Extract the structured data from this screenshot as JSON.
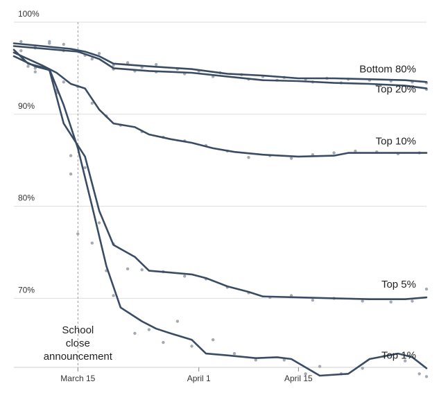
{
  "chart_data": {
    "type": "line",
    "x_axis": {
      "type": "date",
      "domain": [
        "2020-03-06",
        "2020-05-03"
      ],
      "ticks": [
        {
          "x": "2020-03-15",
          "label": "March 15"
        },
        {
          "x": "2020-04-01",
          "label": "April 1"
        },
        {
          "x": "2020-04-15",
          "label": "April 15"
        }
      ]
    },
    "y_axis": {
      "ylim": [
        62.5,
        100
      ],
      "ticks": [
        {
          "y": 100,
          "label": "100%"
        },
        {
          "y": 90,
          "label": "90%"
        },
        {
          "y": 80,
          "label": "80%"
        },
        {
          "y": 70,
          "label": "70%"
        }
      ]
    },
    "grid": true,
    "annotation": {
      "x": "2020-03-15",
      "lines": [
        "School",
        "close",
        "announcement"
      ]
    },
    "series": [
      {
        "name": "Bottom 80%",
        "line": [
          [
            "2020-03-06",
            97.7
          ],
          [
            "2020-03-14",
            97.1
          ],
          [
            "2020-03-16",
            96.8
          ],
          [
            "2020-03-18",
            96.3
          ],
          [
            "2020-03-20",
            95.5
          ],
          [
            "2020-03-25",
            95.2
          ],
          [
            "2020-03-31",
            94.9
          ],
          [
            "2020-04-05",
            94.4
          ],
          [
            "2020-04-10",
            94.2
          ],
          [
            "2020-04-15",
            93.9
          ],
          [
            "2020-04-20",
            93.9
          ],
          [
            "2020-04-25",
            93.8
          ],
          [
            "2020-04-30",
            93.7
          ],
          [
            "2020-05-03",
            93.5
          ]
        ],
        "points": [
          [
            "2020-03-07",
            97.9
          ],
          [
            "2020-03-09",
            97.4
          ],
          [
            "2020-03-11",
            97.9
          ],
          [
            "2020-03-13",
            97.6
          ],
          [
            "2020-03-16",
            96.4
          ],
          [
            "2020-03-18",
            96.6
          ],
          [
            "2020-03-20",
            95.3
          ],
          [
            "2020-03-22",
            95.6
          ],
          [
            "2020-03-24",
            95.1
          ],
          [
            "2020-03-26",
            95.4
          ],
          [
            "2020-03-29",
            94.9
          ],
          [
            "2020-04-01",
            94.7
          ],
          [
            "2020-04-04",
            94.5
          ],
          [
            "2020-04-07",
            94.3
          ],
          [
            "2020-04-10",
            94.1
          ],
          [
            "2020-04-13",
            94.0
          ],
          [
            "2020-04-16",
            93.8
          ],
          [
            "2020-04-19",
            93.9
          ],
          [
            "2020-04-22",
            93.8
          ],
          [
            "2020-04-25",
            93.7
          ],
          [
            "2020-04-28",
            93.6
          ],
          [
            "2020-05-01",
            93.5
          ],
          [
            "2020-05-03",
            93.4
          ]
        ]
      },
      {
        "name": "Top 20%",
        "line": [
          [
            "2020-03-06",
            97.4
          ],
          [
            "2020-03-12",
            97.0
          ],
          [
            "2020-03-15",
            96.8
          ],
          [
            "2020-03-18",
            96.0
          ],
          [
            "2020-03-20",
            95.0
          ],
          [
            "2020-03-25",
            94.7
          ],
          [
            "2020-03-31",
            94.5
          ],
          [
            "2020-04-05",
            94.1
          ],
          [
            "2020-04-10",
            93.7
          ],
          [
            "2020-04-15",
            93.6
          ],
          [
            "2020-04-20",
            93.4
          ],
          [
            "2020-04-25",
            93.3
          ],
          [
            "2020-04-30",
            93.1
          ],
          [
            "2020-05-03",
            92.8
          ]
        ],
        "points": [
          [
            "2020-03-07",
            96.9
          ],
          [
            "2020-03-09",
            97.2
          ],
          [
            "2020-03-11",
            97.7
          ],
          [
            "2020-03-13",
            96.9
          ],
          [
            "2020-03-17",
            96.0
          ],
          [
            "2020-03-20",
            94.9
          ],
          [
            "2020-03-23",
            94.7
          ],
          [
            "2020-03-26",
            94.6
          ],
          [
            "2020-03-30",
            94.4
          ],
          [
            "2020-04-03",
            94.1
          ],
          [
            "2020-04-08",
            93.8
          ],
          [
            "2020-04-12",
            93.7
          ],
          [
            "2020-04-17",
            93.5
          ],
          [
            "2020-04-21",
            93.4
          ],
          [
            "2020-04-26",
            93.2
          ],
          [
            "2020-05-01",
            93.0
          ],
          [
            "2020-05-03",
            92.7
          ]
        ]
      },
      {
        "name": "Top 10%",
        "line": [
          [
            "2020-03-06",
            96.7
          ],
          [
            "2020-03-10",
            95.3
          ],
          [
            "2020-03-12",
            94.5
          ],
          [
            "2020-03-14",
            93.3
          ],
          [
            "2020-03-16",
            92.8
          ],
          [
            "2020-03-18",
            90.5
          ],
          [
            "2020-03-20",
            89.0
          ],
          [
            "2020-03-23",
            88.6
          ],
          [
            "2020-03-25",
            87.8
          ],
          [
            "2020-03-28",
            87.3
          ],
          [
            "2020-03-31",
            86.9
          ],
          [
            "2020-04-03",
            86.3
          ],
          [
            "2020-04-06",
            85.9
          ],
          [
            "2020-04-10",
            85.6
          ],
          [
            "2020-04-15",
            85.4
          ],
          [
            "2020-04-20",
            85.5
          ],
          [
            "2020-04-22",
            85.8
          ],
          [
            "2020-04-28",
            85.8
          ],
          [
            "2020-05-03",
            85.8
          ]
        ],
        "points": [
          [
            "2020-03-08",
            95.2
          ],
          [
            "2020-03-11",
            94.8
          ],
          [
            "2020-03-13",
            93.5
          ],
          [
            "2020-03-15",
            93.0
          ],
          [
            "2020-03-17",
            91.2
          ],
          [
            "2020-03-19",
            89.8
          ],
          [
            "2020-03-21",
            88.8
          ],
          [
            "2020-03-24",
            88.1
          ],
          [
            "2020-03-27",
            87.5
          ],
          [
            "2020-03-30",
            87.1
          ],
          [
            "2020-04-02",
            86.6
          ],
          [
            "2020-04-05",
            86.0
          ],
          [
            "2020-04-08",
            85.3
          ],
          [
            "2020-04-11",
            85.5
          ],
          [
            "2020-04-14",
            85.2
          ],
          [
            "2020-04-17",
            85.6
          ],
          [
            "2020-04-20",
            85.8
          ],
          [
            "2020-04-23",
            86.0
          ],
          [
            "2020-04-26",
            85.9
          ],
          [
            "2020-04-29",
            85.7
          ],
          [
            "2020-05-02",
            85.8
          ]
        ]
      },
      {
        "name": "Top 5%",
        "line": [
          [
            "2020-03-06",
            96.3
          ],
          [
            "2020-03-09",
            95.2
          ],
          [
            "2020-03-11",
            94.8
          ],
          [
            "2020-03-13",
            89.0
          ],
          [
            "2020-03-16",
            85.4
          ],
          [
            "2020-03-18",
            79.5
          ],
          [
            "2020-03-20",
            75.8
          ],
          [
            "2020-03-23",
            74.5
          ],
          [
            "2020-03-25",
            73.0
          ],
          [
            "2020-03-28",
            72.8
          ],
          [
            "2020-03-31",
            72.6
          ],
          [
            "2020-04-02",
            72.2
          ],
          [
            "2020-04-05",
            71.3
          ],
          [
            "2020-04-08",
            70.7
          ],
          [
            "2020-04-10",
            70.2
          ],
          [
            "2020-04-15",
            70.1
          ],
          [
            "2020-04-20",
            70.0
          ],
          [
            "2020-04-25",
            69.9
          ],
          [
            "2020-04-30",
            69.9
          ],
          [
            "2020-05-03",
            70.1
          ]
        ],
        "points": [
          [
            "2020-03-09",
            95.0
          ],
          [
            "2020-03-12",
            92.6
          ],
          [
            "2020-03-14",
            85.5
          ],
          [
            "2020-03-16",
            84.2
          ],
          [
            "2020-03-18",
            78.2
          ],
          [
            "2020-03-20",
            75.9
          ],
          [
            "2020-03-22",
            73.2
          ],
          [
            "2020-03-24",
            73.1
          ],
          [
            "2020-03-27",
            72.9
          ],
          [
            "2020-03-30",
            72.4
          ],
          [
            "2020-04-02",
            72.1
          ],
          [
            "2020-04-05",
            71.2
          ],
          [
            "2020-04-08",
            70.6
          ],
          [
            "2020-04-11",
            70.1
          ],
          [
            "2020-04-14",
            70.3
          ],
          [
            "2020-04-17",
            69.8
          ],
          [
            "2020-04-20",
            70.0
          ],
          [
            "2020-04-24",
            69.7
          ],
          [
            "2020-04-28",
            69.6
          ],
          [
            "2020-05-01",
            69.7
          ],
          [
            "2020-05-03",
            71.0
          ]
        ]
      },
      {
        "name": "Top 1%",
        "line": [
          [
            "2020-03-06",
            97.0
          ],
          [
            "2020-03-08",
            95.5
          ],
          [
            "2020-03-11",
            94.9
          ],
          [
            "2020-03-13",
            91.0
          ],
          [
            "2020-03-15",
            86.3
          ],
          [
            "2020-03-17",
            80.0
          ],
          [
            "2020-03-19",
            73.5
          ],
          [
            "2020-03-21",
            69.0
          ],
          [
            "2020-03-24",
            67.5
          ],
          [
            "2020-03-26",
            66.7
          ],
          [
            "2020-03-28",
            66.2
          ],
          [
            "2020-03-31",
            65.5
          ],
          [
            "2020-04-02",
            64.0
          ],
          [
            "2020-04-05",
            63.8
          ],
          [
            "2020-04-09",
            63.5
          ],
          [
            "2020-04-12",
            63.6
          ],
          [
            "2020-04-14",
            63.4
          ],
          [
            "2020-04-16",
            62.5
          ],
          [
            "2020-04-18",
            61.6
          ],
          [
            "2020-04-22",
            61.8
          ],
          [
            "2020-04-25",
            63.4
          ],
          [
            "2020-04-29",
            64.0
          ],
          [
            "2020-05-01",
            63.6
          ],
          [
            "2020-05-03",
            62.4
          ]
        ],
        "points": [
          [
            "2020-03-09",
            94.6
          ],
          [
            "2020-03-12",
            92.3
          ],
          [
            "2020-03-14",
            83.5
          ],
          [
            "2020-03-15",
            77.0
          ],
          [
            "2020-03-17",
            76.0
          ],
          [
            "2020-03-19",
            73.0
          ],
          [
            "2020-03-20",
            70.3
          ],
          [
            "2020-03-23",
            66.2
          ],
          [
            "2020-03-25",
            66.6
          ],
          [
            "2020-03-27",
            65.2
          ],
          [
            "2020-03-29",
            67.5
          ],
          [
            "2020-03-31",
            64.8
          ],
          [
            "2020-04-03",
            65.5
          ],
          [
            "2020-04-06",
            64.0
          ],
          [
            "2020-04-09",
            63.3
          ],
          [
            "2020-04-13",
            63.3
          ],
          [
            "2020-04-16",
            61.8
          ],
          [
            "2020-04-18",
            62.6
          ],
          [
            "2020-04-21",
            61.8
          ],
          [
            "2020-04-24",
            62.4
          ],
          [
            "2020-04-27",
            63.7
          ],
          [
            "2020-04-30",
            63.2
          ],
          [
            "2020-05-02",
            61.8
          ],
          [
            "2020-05-03",
            61.5
          ]
        ]
      }
    ]
  },
  "colors": {
    "line": "#3a4c63",
    "point": "#a3aab4",
    "gridline": "#dddddd",
    "annotation_line": "#999999",
    "text": "#222222"
  }
}
